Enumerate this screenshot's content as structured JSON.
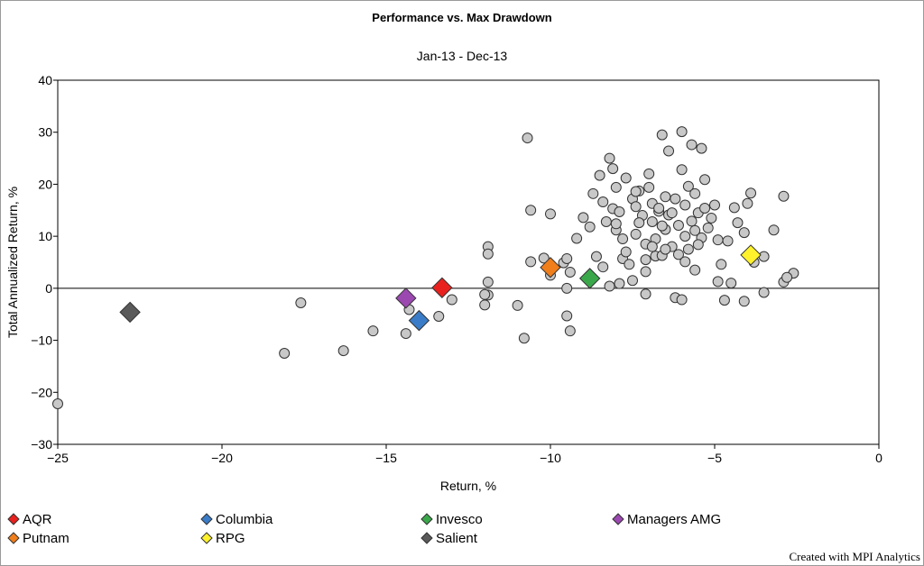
{
  "chart_data": {
    "type": "scatter",
    "title": "Performance vs. Max Drawdown",
    "subtitle": "Jan-13 - Dec-13",
    "xlabel": "Return, %",
    "ylabel": "Total Annualized Return, %",
    "xlim": [
      -25,
      0
    ],
    "ylim": [
      -30,
      40
    ],
    "x_ticks": [
      -25,
      -20,
      -15,
      -10,
      -5,
      0
    ],
    "y_ticks": [
      -30,
      -20,
      -10,
      0,
      10,
      20,
      30,
      40
    ],
    "grid": false,
    "legend_position": "bottom",
    "peer_color": "#c8c8c8",
    "peers": [
      [
        -25.0,
        -22.2
      ],
      [
        -18.1,
        -12.5
      ],
      [
        -17.6,
        -2.8
      ],
      [
        -16.3,
        -12.0
      ],
      [
        -15.4,
        -8.2
      ],
      [
        -14.4,
        -8.7
      ],
      [
        -14.3,
        -4.1
      ],
      [
        -13.4,
        -5.4
      ],
      [
        -13.0,
        -2.2
      ],
      [
        -12.0,
        -3.2
      ],
      [
        -11.9,
        8.0
      ],
      [
        -11.9,
        6.6
      ],
      [
        -11.9,
        1.2
      ],
      [
        -11.9,
        -1.3
      ],
      [
        -12.0,
        -1.2
      ],
      [
        -11.0,
        -3.3
      ],
      [
        -10.8,
        -9.6
      ],
      [
        -10.7,
        28.9
      ],
      [
        -10.6,
        15.0
      ],
      [
        -10.6,
        5.1
      ],
      [
        -10.2,
        5.8
      ],
      [
        -10.0,
        14.3
      ],
      [
        -10.0,
        2.5
      ],
      [
        -9.6,
        4.9
      ],
      [
        -9.5,
        5.7
      ],
      [
        -9.5,
        0.0
      ],
      [
        -9.5,
        -5.3
      ],
      [
        -9.4,
        -8.2
      ],
      [
        -9.4,
        3.1
      ],
      [
        -9.2,
        9.6
      ],
      [
        -9.0,
        13.6
      ],
      [
        -8.8,
        11.8
      ],
      [
        -8.7,
        18.2
      ],
      [
        -8.6,
        6.1
      ],
      [
        -8.5,
        21.7
      ],
      [
        -8.4,
        16.6
      ],
      [
        -8.3,
        12.8
      ],
      [
        -8.2,
        25.0
      ],
      [
        -8.1,
        23.0
      ],
      [
        -8.1,
        15.3
      ],
      [
        -8.0,
        11.2
      ],
      [
        -8.0,
        19.4
      ],
      [
        -7.9,
        14.7
      ],
      [
        -7.8,
        9.5
      ],
      [
        -7.8,
        5.7
      ],
      [
        -7.7,
        21.2
      ],
      [
        -7.6,
        4.6
      ],
      [
        -7.5,
        17.2
      ],
      [
        -7.5,
        1.5
      ],
      [
        -7.4,
        15.7
      ],
      [
        -7.4,
        10.4
      ],
      [
        -7.3,
        18.7
      ],
      [
        -7.2,
        14.0
      ],
      [
        -7.1,
        8.5
      ],
      [
        -7.1,
        5.5
      ],
      [
        -7.0,
        22.0
      ],
      [
        -7.0,
        19.4
      ],
      [
        -6.9,
        16.3
      ],
      [
        -6.9,
        12.8
      ],
      [
        -6.8,
        9.5
      ],
      [
        -6.8,
        6.2
      ],
      [
        -6.7,
        14.8
      ],
      [
        -6.6,
        29.5
      ],
      [
        -6.5,
        17.6
      ],
      [
        -6.5,
        11.3
      ],
      [
        -6.4,
        26.4
      ],
      [
        -6.4,
        14.1
      ],
      [
        -6.3,
        8.0
      ],
      [
        -6.2,
        17.2
      ],
      [
        -6.1,
        12.1
      ],
      [
        -6.1,
        6.5
      ],
      [
        -6.0,
        30.1
      ],
      [
        -6.0,
        22.8
      ],
      [
        -5.9,
        16.0
      ],
      [
        -5.9,
        10.0
      ],
      [
        -5.8,
        19.6
      ],
      [
        -5.8,
        7.5
      ],
      [
        -5.7,
        27.6
      ],
      [
        -5.7,
        12.9
      ],
      [
        -5.6,
        18.2
      ],
      [
        -5.6,
        3.5
      ],
      [
        -5.5,
        14.5
      ],
      [
        -5.4,
        9.7
      ],
      [
        -5.4,
        26.9
      ],
      [
        -5.3,
        20.9
      ],
      [
        -5.3,
        15.4
      ],
      [
        -5.2,
        11.6
      ],
      [
        -5.1,
        13.5
      ],
      [
        -5.0,
        16.0
      ],
      [
        -4.9,
        9.3
      ],
      [
        -4.9,
        1.3
      ],
      [
        -4.8,
        4.6
      ],
      [
        -4.7,
        -2.3
      ],
      [
        -4.6,
        9.1
      ],
      [
        -4.5,
        1.0
      ],
      [
        -4.4,
        15.5
      ],
      [
        -4.3,
        12.6
      ],
      [
        -4.1,
        10.7
      ],
      [
        -4.1,
        -2.5
      ],
      [
        -4.0,
        16.3
      ],
      [
        -3.9,
        18.3
      ],
      [
        -3.8,
        5.0
      ],
      [
        -3.5,
        6.1
      ],
      [
        -3.5,
        -0.8
      ],
      [
        -3.2,
        11.2
      ],
      [
        -2.9,
        17.7
      ],
      [
        -2.9,
        1.2
      ],
      [
        -2.6,
        2.9
      ],
      [
        -2.8,
        2.1
      ],
      [
        -6.2,
        -1.8
      ],
      [
        -6.0,
        -2.2
      ],
      [
        -7.1,
        -1.1
      ],
      [
        -8.2,
        0.4
      ],
      [
        -7.9,
        0.9
      ],
      [
        -7.1,
        3.2
      ],
      [
        -6.6,
        6.3
      ],
      [
        -8.4,
        4.1
      ],
      [
        -7.3,
        12.6
      ],
      [
        -6.6,
        12.0
      ],
      [
        -6.3,
        14.5
      ],
      [
        -5.9,
        5.1
      ],
      [
        -6.9,
        8.0
      ],
      [
        -7.7,
        7.0
      ],
      [
        -8.0,
        12.4
      ],
      [
        -7.4,
        18.6
      ],
      [
        -6.7,
        15.4
      ],
      [
        -5.5,
        8.4
      ],
      [
        -6.5,
        7.5
      ],
      [
        -5.6,
        11.1
      ]
    ],
    "series": [
      {
        "name": "AQR",
        "color": "#e8211e",
        "x": -13.3,
        "y": 0.1
      },
      {
        "name": "Columbia",
        "color": "#3a7cc7",
        "x": -14.0,
        "y": -6.2
      },
      {
        "name": "Invesco",
        "color": "#3aa84a",
        "x": -8.8,
        "y": 1.9
      },
      {
        "name": "Managers AMG",
        "color": "#9b48b0",
        "x": -14.4,
        "y": -1.9
      },
      {
        "name": "Putnam",
        "color": "#f07e1b",
        "x": -10.0,
        "y": 4.0
      },
      {
        "name": "RPG",
        "color": "#fff22c",
        "x": -3.9,
        "y": 6.4
      },
      {
        "name": "Salient",
        "color": "#5a5a5a",
        "x": -22.8,
        "y": -4.6
      }
    ]
  },
  "footer": {
    "credit": "Created with MPI Analytics"
  }
}
